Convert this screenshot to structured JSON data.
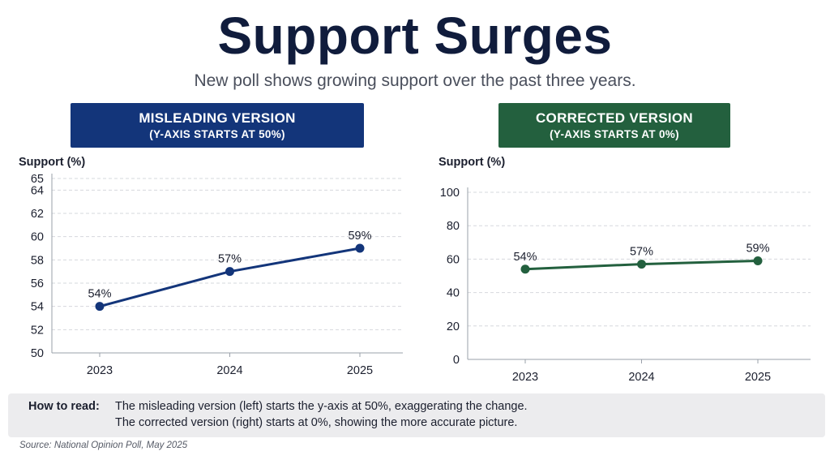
{
  "header": {
    "title": "Support Surges",
    "subtitle": "New poll shows growing support over the past three years."
  },
  "panels": {
    "left": {
      "label": "MISLEADING VERSION",
      "sublabel": "(Y-AXIS STARTS AT 50%)",
      "color": "#13357a"
    },
    "right": {
      "label": "CORRECTED VERSION",
      "sublabel": "(Y-AXIS STARTS AT 0%)",
      "color": "#23603e"
    }
  },
  "chart_data": [
    {
      "type": "line",
      "ylabel": "Support (%)",
      "xlabel": "",
      "categories": [
        "2023",
        "2024",
        "2025"
      ],
      "series": [
        {
          "values": [
            54,
            57,
            59
          ],
          "labels": [
            "54%",
            "57%",
            "59%"
          ]
        }
      ],
      "ylim": [
        50,
        65
      ],
      "yticks": [
        50,
        52,
        54,
        56,
        58,
        60,
        62,
        64,
        65
      ],
      "grid": true,
      "line_color": "#13357a"
    },
    {
      "type": "line",
      "ylabel": "Support (%)",
      "xlabel": "",
      "categories": [
        "2023",
        "2024",
        "2025"
      ],
      "series": [
        {
          "values": [
            54,
            57,
            59
          ],
          "labels": [
            "54%",
            "57%",
            "59%"
          ]
        }
      ],
      "ylim": [
        0,
        100
      ],
      "yticks": [
        0,
        20,
        40,
        60,
        80,
        100
      ],
      "grid": true,
      "line_color": "#23603e"
    }
  ],
  "note": {
    "label": "How to read:",
    "line1": "The misleading version (left) starts the y-axis at 50%, exaggerating the change.",
    "line2": "The corrected version (right) starts at 0%, showing the more accurate picture."
  },
  "source": "Source: National Opinion Poll, May 2025"
}
